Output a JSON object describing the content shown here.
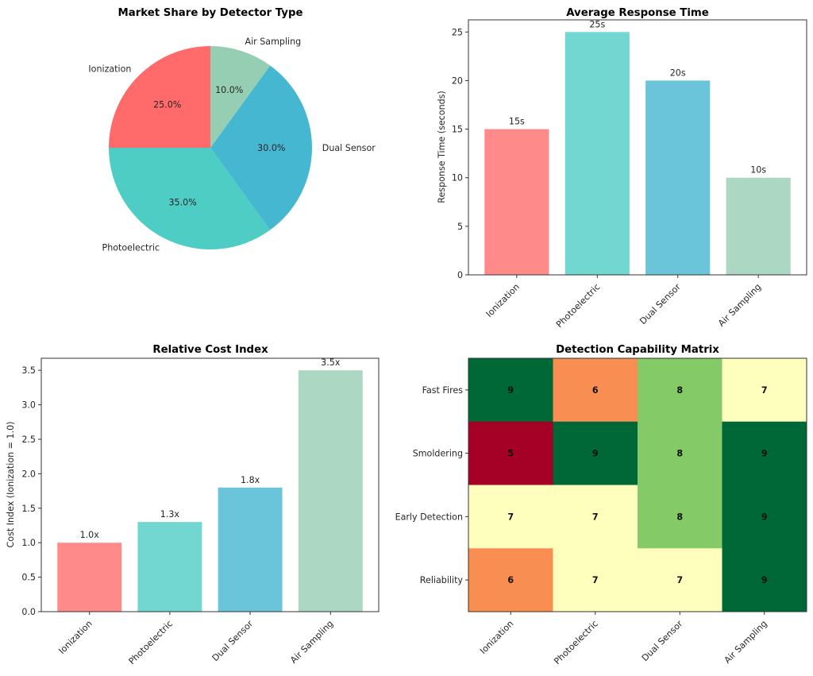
{
  "chart_data": [
    {
      "id": "pie",
      "type": "pie",
      "title": "Market Share by Detector Type",
      "categories": [
        "Ionization",
        "Photoelectric",
        "Dual Sensor",
        "Air Sampling"
      ],
      "values": [
        25,
        35,
        30,
        10
      ],
      "value_labels": [
        "25.0%",
        "35.0%",
        "30.0%",
        "10.0%"
      ],
      "colors": [
        "#FF6B6B",
        "#4ECDC4",
        "#45B7D1",
        "#96CEB4"
      ],
      "start_angle_deg": 90,
      "direction": "counterclockwise"
    },
    {
      "id": "response",
      "type": "bar",
      "title": "Average Response Time",
      "xlabel": "",
      "ylabel": "Response Time (seconds)",
      "categories": [
        "Ionization",
        "Photoelectric",
        "Dual Sensor",
        "Air Sampling"
      ],
      "values": [
        15,
        25,
        20,
        10
      ],
      "value_labels": [
        "15s",
        "25s",
        "20s",
        "10s"
      ],
      "colors": [
        "#FF8A8A",
        "#72D7D0",
        "#6AC5DA",
        "#ABD7C3"
      ],
      "ylim": [
        0,
        26.25
      ],
      "yticks": [
        0,
        5,
        10,
        15,
        20,
        25
      ],
      "ytick_labels": [
        "0",
        "5",
        "10",
        "15",
        "20",
        "25"
      ],
      "grid": false
    },
    {
      "id": "cost",
      "type": "bar",
      "title": "Relative Cost Index",
      "xlabel": "",
      "ylabel": "Cost Index (Ionization = 1.0)",
      "categories": [
        "Ionization",
        "Photoelectric",
        "Dual Sensor",
        "Air Sampling"
      ],
      "values": [
        1.0,
        1.3,
        1.8,
        3.5
      ],
      "value_labels": [
        "1.0x",
        "1.3x",
        "1.8x",
        "3.5x"
      ],
      "colors": [
        "#FF8A8A",
        "#72D7D0",
        "#6AC5DA",
        "#ABD7C3"
      ],
      "ylim": [
        0,
        3.675
      ],
      "yticks": [
        0.0,
        0.5,
        1.0,
        1.5,
        2.0,
        2.5,
        3.0,
        3.5
      ],
      "ytick_labels": [
        "0.0",
        "0.5",
        "1.0",
        "1.5",
        "2.0",
        "2.5",
        "3.0",
        "3.5"
      ],
      "grid": false
    },
    {
      "id": "matrix",
      "type": "heatmap",
      "title": "Detection Capability Matrix",
      "x_categories": [
        "Ionization",
        "Photoelectric",
        "Dual Sensor",
        "Air Sampling"
      ],
      "y_categories": [
        "Fast Fires",
        "Smoldering",
        "Early Detection",
        "Reliability"
      ],
      "values": [
        [
          9,
          6,
          8,
          7
        ],
        [
          5,
          9,
          8,
          9
        ],
        [
          7,
          7,
          8,
          9
        ],
        [
          6,
          7,
          7,
          9
        ]
      ],
      "colormap": "RdYlGn",
      "value_colors": {
        "5": "#A50026",
        "6": "#F98E52",
        "7": "#FEFEBD",
        "8": "#84CA66",
        "9": "#006837"
      }
    }
  ]
}
